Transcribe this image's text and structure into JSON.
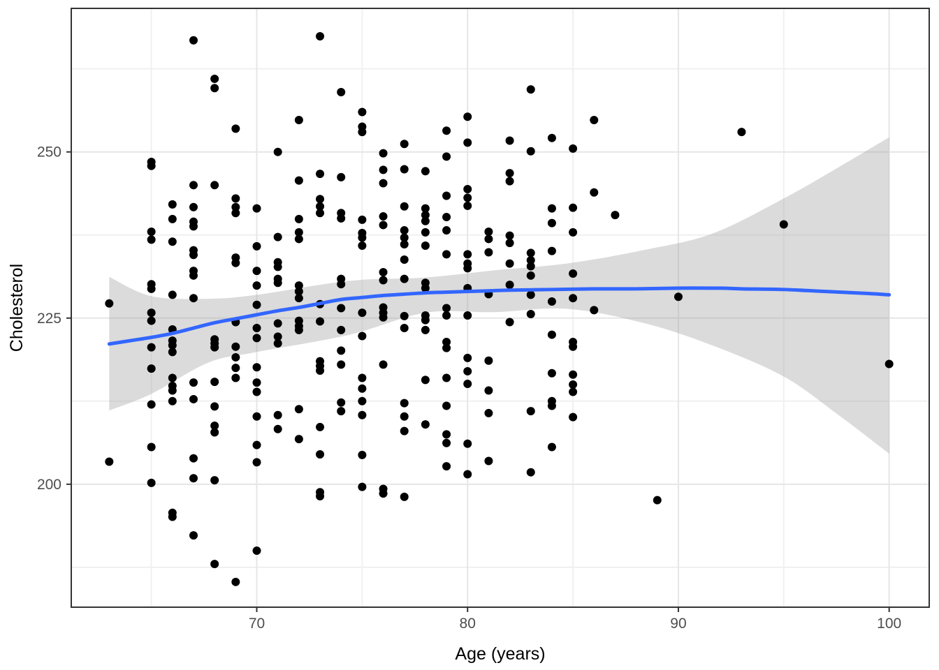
{
  "figure": {
    "background": "#ffffff"
  },
  "chart_data": {
    "type": "scatter",
    "title": "",
    "xlabel": "Age (years)",
    "ylabel": "Cholesterol",
    "xlim": [
      61.2,
      101.9
    ],
    "ylim": [
      181.5,
      271.6
    ],
    "x_ticks_major": [
      70,
      80,
      90,
      100
    ],
    "x_ticks_minor": [
      65,
      75,
      85,
      95
    ],
    "y_ticks_major": [
      200,
      225,
      250
    ],
    "y_ticks_minor": [
      187.5,
      212.5,
      237.5,
      262.5
    ],
    "grid": "major+minor",
    "legend": "none",
    "colors": {
      "point": "#000000",
      "smooth_line": "#3366FF",
      "ribbon": "rgba(160,160,160,0.38)",
      "grid_major": "#e6e6e6",
      "grid_minor": "#f0f0f0",
      "panel_border": "#333333",
      "tick_mark": "#333333",
      "tick_label": "#4d4d4d",
      "axis_title": "#000000",
      "background": "#ffffff"
    },
    "points": [
      [
        63,
        227.2
      ],
      [
        63,
        203.4
      ],
      [
        65,
        248.5
      ],
      [
        65,
        247.9
      ],
      [
        65,
        238
      ],
      [
        65,
        236.8
      ],
      [
        65,
        230.1
      ],
      [
        65,
        229.4
      ],
      [
        65,
        225.8
      ],
      [
        65,
        224.6
      ],
      [
        65,
        220.6
      ],
      [
        65,
        217.4
      ],
      [
        65,
        212
      ],
      [
        65,
        205.6
      ],
      [
        65,
        200.2
      ],
      [
        66,
        242.1
      ],
      [
        66,
        239.9
      ],
      [
        66,
        236.5
      ],
      [
        66,
        228.5
      ],
      [
        66,
        223.3
      ],
      [
        66,
        221.6
      ],
      [
        66,
        220.9
      ],
      [
        66,
        219.9
      ],
      [
        66,
        216
      ],
      [
        66,
        214.8
      ],
      [
        66,
        214.1
      ],
      [
        66,
        212.5
      ],
      [
        66,
        195.7
      ],
      [
        66,
        195.1
      ],
      [
        67,
        266.8
      ],
      [
        67,
        245
      ],
      [
        67,
        241.7
      ],
      [
        67,
        239.5
      ],
      [
        67,
        238.8
      ],
      [
        67,
        235.2
      ],
      [
        67,
        234.5
      ],
      [
        67,
        232.1
      ],
      [
        67,
        231.4
      ],
      [
        67,
        228
      ],
      [
        67,
        215.3
      ],
      [
        67,
        212.8
      ],
      [
        67,
        203.9
      ],
      [
        67,
        200.9
      ],
      [
        67,
        192.3
      ],
      [
        68,
        261
      ],
      [
        68,
        259.6
      ],
      [
        68,
        245
      ],
      [
        68,
        221.8
      ],
      [
        68,
        221.2
      ],
      [
        68,
        220.6
      ],
      [
        68,
        215.4
      ],
      [
        68,
        211.7
      ],
      [
        68,
        208.8
      ],
      [
        68,
        207.8
      ],
      [
        68,
        200.6
      ],
      [
        68,
        188
      ],
      [
        69,
        253.5
      ],
      [
        69,
        243
      ],
      [
        69,
        241.7
      ],
      [
        69,
        240.8
      ],
      [
        69,
        234.1
      ],
      [
        69,
        233.3
      ],
      [
        69,
        224.4
      ],
      [
        69,
        220.7
      ],
      [
        69,
        219.1
      ],
      [
        69,
        217.5
      ],
      [
        69,
        216
      ],
      [
        69,
        185.3
      ],
      [
        70,
        241.5
      ],
      [
        70,
        235.8
      ],
      [
        70,
        232.1
      ],
      [
        70,
        229.9
      ],
      [
        70,
        227
      ],
      [
        70,
        223.5
      ],
      [
        70,
        222
      ],
      [
        70,
        217.6
      ],
      [
        70,
        215.3
      ],
      [
        70,
        213.9
      ],
      [
        70,
        210.2
      ],
      [
        70,
        205.9
      ],
      [
        70,
        203.3
      ],
      [
        70,
        190
      ],
      [
        71,
        250
      ],
      [
        71,
        237.2
      ],
      [
        71,
        233.4
      ],
      [
        71,
        232.7
      ],
      [
        71,
        230.9
      ],
      [
        71,
        230.3
      ],
      [
        71,
        224.2
      ],
      [
        71,
        222.2
      ],
      [
        71,
        221.2
      ],
      [
        71,
        210.4
      ],
      [
        71,
        208.3
      ],
      [
        72,
        254.8
      ],
      [
        72,
        245.7
      ],
      [
        72,
        239.9
      ],
      [
        72,
        237.9
      ],
      [
        72,
        236.9
      ],
      [
        72,
        229.9
      ],
      [
        72,
        229
      ],
      [
        72,
        228
      ],
      [
        72,
        224.6
      ],
      [
        72,
        223.8
      ],
      [
        72,
        223.2
      ],
      [
        72,
        211.3
      ],
      [
        72,
        206.8
      ],
      [
        73,
        267.4
      ],
      [
        73,
        246.7
      ],
      [
        73,
        242.9
      ],
      [
        73,
        241.8
      ],
      [
        73,
        240.8
      ],
      [
        73,
        227.1
      ],
      [
        73,
        224.5
      ],
      [
        73,
        218.5
      ],
      [
        73,
        217.8
      ],
      [
        73,
        217.1
      ],
      [
        73,
        208.6
      ],
      [
        73,
        204.5
      ],
      [
        73,
        198.8
      ],
      [
        73,
        198.2
      ],
      [
        74,
        259
      ],
      [
        74,
        246.2
      ],
      [
        74,
        240.8
      ],
      [
        74,
        240
      ],
      [
        74,
        230.9
      ],
      [
        74,
        230.1
      ],
      [
        74,
        226.5
      ],
      [
        74,
        223.2
      ],
      [
        74,
        220.1
      ],
      [
        74,
        218
      ],
      [
        74,
        212.3
      ],
      [
        74,
        211
      ],
      [
        75,
        256
      ],
      [
        75,
        253.8
      ],
      [
        75,
        253
      ],
      [
        75,
        239.8
      ],
      [
        75,
        237.8
      ],
      [
        75,
        237.1
      ],
      [
        75,
        235.9
      ],
      [
        75,
        225.8
      ],
      [
        75,
        222.3
      ],
      [
        75,
        216
      ],
      [
        75,
        214.4
      ],
      [
        75,
        212.5
      ],
      [
        75,
        210.4
      ],
      [
        75,
        204.4
      ],
      [
        75,
        199.6
      ],
      [
        76,
        249.8
      ],
      [
        76,
        247.3
      ],
      [
        76,
        245.3
      ],
      [
        76,
        240.3
      ],
      [
        76,
        239
      ],
      [
        76,
        231.9
      ],
      [
        76,
        230.7
      ],
      [
        76,
        226.6
      ],
      [
        76,
        225.8
      ],
      [
        76,
        225.1
      ],
      [
        76,
        218
      ],
      [
        76,
        199.3
      ],
      [
        76,
        198.6
      ],
      [
        77,
        251.2
      ],
      [
        77,
        247.4
      ],
      [
        77,
        241.8
      ],
      [
        77,
        238.2
      ],
      [
        77,
        237.1
      ],
      [
        77,
        236.1
      ],
      [
        77,
        233.8
      ],
      [
        77,
        230.9
      ],
      [
        77,
        225.3
      ],
      [
        77,
        223.5
      ],
      [
        77,
        212.2
      ],
      [
        77,
        210.2
      ],
      [
        77,
        208
      ],
      [
        77,
        198.1
      ],
      [
        78,
        247.1
      ],
      [
        78,
        241.5
      ],
      [
        78,
        240.5
      ],
      [
        78,
        239.6
      ],
      [
        78,
        237.9
      ],
      [
        78,
        235.9
      ],
      [
        78,
        230.3
      ],
      [
        78,
        229.5
      ],
      [
        78,
        225.4
      ],
      [
        78,
        224.7
      ],
      [
        78,
        223.2
      ],
      [
        78,
        215.7
      ],
      [
        78,
        209
      ],
      [
        79,
        253.2
      ],
      [
        79,
        249.3
      ],
      [
        79,
        243.4
      ],
      [
        79,
        240.2
      ],
      [
        79,
        238.2
      ],
      [
        79,
        234.6
      ],
      [
        79,
        226.5
      ],
      [
        79,
        225.4
      ],
      [
        79,
        221.4
      ],
      [
        79,
        220.5
      ],
      [
        79,
        216
      ],
      [
        79,
        211.8
      ],
      [
        79,
        207.5
      ],
      [
        79,
        206.2
      ],
      [
        79,
        202.7
      ],
      [
        80,
        255.3
      ],
      [
        80,
        251.4
      ],
      [
        80,
        244.4
      ],
      [
        80,
        243.1
      ],
      [
        80,
        241.9
      ],
      [
        80,
        234.6
      ],
      [
        80,
        233.2
      ],
      [
        80,
        232.5
      ],
      [
        80,
        229.5
      ],
      [
        80,
        225.4
      ],
      [
        80,
        219
      ],
      [
        80,
        217
      ],
      [
        80,
        215.1
      ],
      [
        80,
        206.1
      ],
      [
        80,
        201.5
      ],
      [
        81,
        238
      ],
      [
        81,
        236.9
      ],
      [
        81,
        234.9
      ],
      [
        81,
        228.6
      ],
      [
        81,
        218.6
      ],
      [
        81,
        214.1
      ],
      [
        81,
        210.7
      ],
      [
        81,
        203.5
      ],
      [
        82,
        251.7
      ],
      [
        82,
        246.8
      ],
      [
        82,
        245.6
      ],
      [
        82,
        237.4
      ],
      [
        82,
        236.3
      ],
      [
        82,
        233.2
      ],
      [
        82,
        230
      ],
      [
        82,
        224.4
      ],
      [
        83,
        259.4
      ],
      [
        83,
        250.1
      ],
      [
        83,
        234.8
      ],
      [
        83,
        233.7
      ],
      [
        83,
        232.8
      ],
      [
        83,
        231.4
      ],
      [
        83,
        228.5
      ],
      [
        83,
        225.6
      ],
      [
        83,
        211
      ],
      [
        83,
        201.8
      ],
      [
        84,
        252.1
      ],
      [
        84,
        241.5
      ],
      [
        84,
        239.3
      ],
      [
        84,
        235.1
      ],
      [
        84,
        227.5
      ],
      [
        84,
        222.5
      ],
      [
        84,
        216.7
      ],
      [
        84,
        212.5
      ],
      [
        84,
        211.8
      ],
      [
        84,
        205.6
      ],
      [
        85,
        250.5
      ],
      [
        85,
        241.6
      ],
      [
        85,
        237.9
      ],
      [
        85,
        231.7
      ],
      [
        85,
        228
      ],
      [
        85,
        221.4
      ],
      [
        85,
        220.7
      ],
      [
        85,
        216.5
      ],
      [
        85,
        215
      ],
      [
        85,
        213.9
      ],
      [
        85,
        210.1
      ],
      [
        86,
        254.8
      ],
      [
        86,
        243.9
      ],
      [
        86,
        226.2
      ],
      [
        87,
        240.5
      ],
      [
        89,
        197.6
      ],
      [
        90,
        228.2
      ],
      [
        93,
        253
      ],
      [
        95,
        239.1
      ],
      [
        100,
        218.1
      ]
    ],
    "smooth": {
      "name": "loess-fit-line",
      "points": [
        [
          63,
          221.1
        ],
        [
          64,
          221.6
        ],
        [
          65,
          222.1
        ],
        [
          66,
          222.7
        ],
        [
          67,
          223.5
        ],
        [
          68,
          224.3
        ],
        [
          69,
          224.9
        ],
        [
          70,
          225.5
        ],
        [
          71,
          226.1
        ],
        [
          72,
          226.6
        ],
        [
          73,
          227.2
        ],
        [
          74,
          227.8
        ],
        [
          75,
          228.1
        ],
        [
          76,
          228.4
        ],
        [
          77,
          228.6
        ],
        [
          78,
          228.8
        ],
        [
          79,
          228.9
        ],
        [
          80,
          229
        ],
        [
          81,
          229.1
        ],
        [
          82,
          229.2
        ],
        [
          84,
          229.3
        ],
        [
          86,
          229.4
        ],
        [
          88,
          229.4
        ],
        [
          90,
          229.5
        ],
        [
          92,
          229.5
        ],
        [
          93,
          229.4
        ],
        [
          95,
          229.3
        ],
        [
          97,
          229
        ],
        [
          99,
          228.7
        ],
        [
          100,
          228.5
        ]
      ]
    },
    "ribbon": {
      "name": "confidence-band",
      "x": [
        63,
        65,
        67.7,
        70,
        74.4,
        78,
        81.3,
        84.7,
        88.3,
        91.6,
        95,
        97.6,
        100
      ],
      "upper": [
        231.2,
        228.3,
        227.9,
        228.5,
        230.6,
        231.1,
        232.2,
        233.2,
        235.2,
        237.7,
        243,
        247.7,
        252.2
      ],
      "lower": [
        211.1,
        213.6,
        218.3,
        219.9,
        222.5,
        225.8,
        225.9,
        226.4,
        224.3,
        220.9,
        216.2,
        210.4,
        204.6
      ]
    }
  }
}
